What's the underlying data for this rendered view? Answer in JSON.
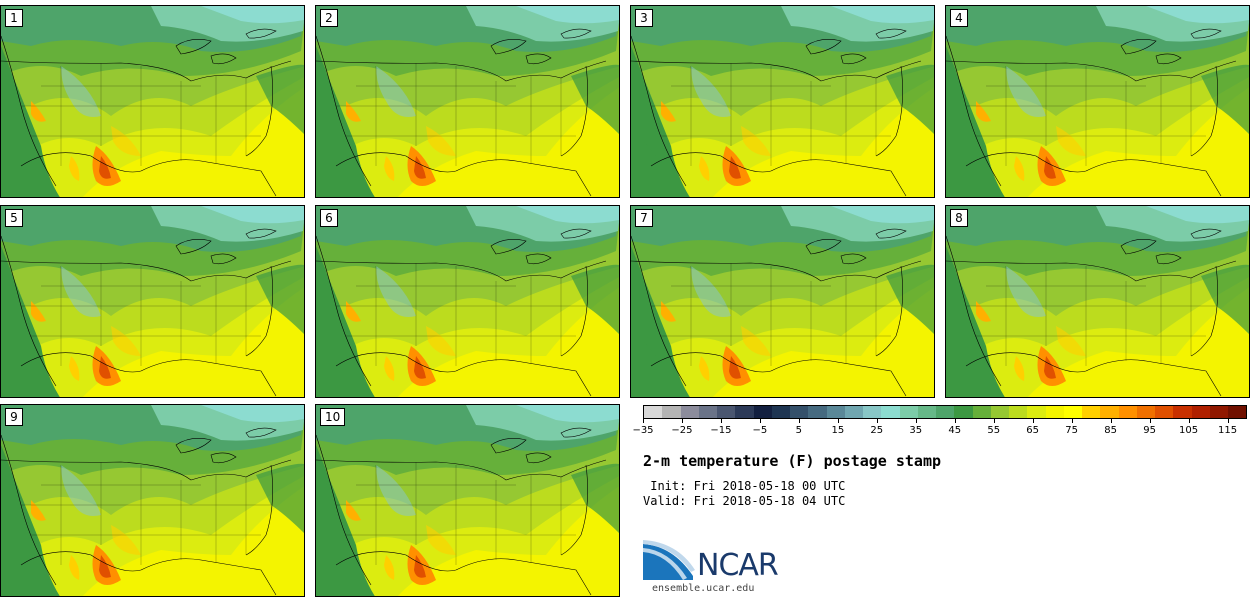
{
  "panels": [
    {
      "label": "1"
    },
    {
      "label": "2"
    },
    {
      "label": "3"
    },
    {
      "label": "4"
    },
    {
      "label": "5"
    },
    {
      "label": "6"
    },
    {
      "label": "7"
    },
    {
      "label": "8"
    },
    {
      "label": "9"
    },
    {
      "label": "10"
    }
  ],
  "colorbar": {
    "colors": [
      "#d8d8d8",
      "#b4b4b4",
      "#8c8c9c",
      "#6a7388",
      "#4a5670",
      "#2c3a58",
      "#132040",
      "#1e3552",
      "#34506a",
      "#466a80",
      "#5a8898",
      "#70a6b0",
      "#88c6c6",
      "#8cdcd0",
      "#7ccca8",
      "#66b888",
      "#4ea46a",
      "#3c9842",
      "#66b03a",
      "#96c832",
      "#bcdc1e",
      "#dcec10",
      "#f4f400",
      "#ffff00",
      "#ffd000",
      "#ffb000",
      "#ff9000",
      "#f07000",
      "#e05000",
      "#c83000",
      "#b02000",
      "#901800",
      "#701000"
    ],
    "tick_labels": [
      "−35",
      "−25",
      "−15",
      "−5",
      "5",
      "15",
      "25",
      "35",
      "45",
      "55",
      "65",
      "75",
      "85",
      "95",
      "105",
      "115"
    ],
    "range": [
      -35,
      120
    ]
  },
  "title": "2-m temperature (F) postage stamp",
  "init": " Init: Fri 2018-05-18 00 UTC",
  "valid": "Valid: Fri 2018-05-18 04 UTC",
  "logo_text": "NCAR",
  "footer": "ensemble.ucar.edu"
}
